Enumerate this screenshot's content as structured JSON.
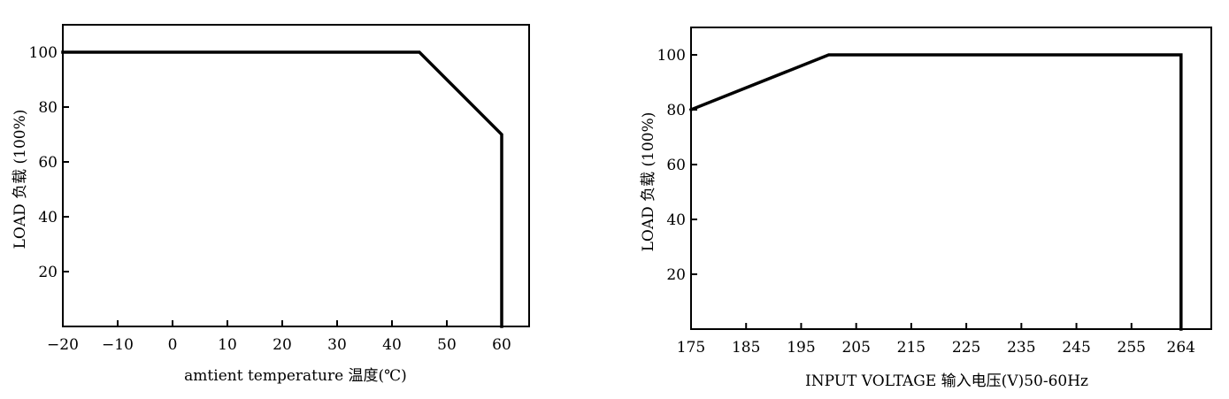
{
  "chart_data": [
    {
      "type": "line",
      "xlabel": "amtient temperature 温度(℃)",
      "ylabel": "LOAD 负载 (100%)",
      "xlim": [
        -20,
        65
      ],
      "ylim": [
        0,
        110
      ],
      "x_ticks": [
        -20,
        -10,
        0,
        10,
        20,
        30,
        40,
        50,
        60
      ],
      "x_tick_labels": [
        "−20",
        "−10",
        "0",
        "10",
        "20",
        "30",
        "40",
        "50",
        "60"
      ],
      "y_ticks": [
        20,
        40,
        60,
        80,
        100
      ],
      "y_tick_labels": [
        "20",
        "40",
        "60",
        "80",
        "100"
      ],
      "grid": false,
      "series": [
        {
          "x": [
            -20,
            45,
            60,
            60
          ],
          "y": [
            100,
            100,
            70,
            0
          ]
        }
      ]
    },
    {
      "type": "line",
      "xlabel": "INPUT VOLTAGE 输入电压(V)50-60Hz",
      "ylabel": "LOAD 负载 (100%)",
      "xlim": [
        175,
        269.5
      ],
      "ylim": [
        0,
        110
      ],
      "x_ticks": [
        175,
        185,
        195,
        205,
        215,
        225,
        235,
        245,
        255,
        264
      ],
      "x_tick_labels": [
        "175",
        "185",
        "195",
        "205",
        "215",
        "225",
        "235",
        "245",
        "255",
        "264"
      ],
      "y_ticks": [
        20,
        40,
        60,
        80,
        100
      ],
      "y_tick_labels": [
        "20",
        "40",
        "60",
        "80",
        "100"
      ],
      "grid": false,
      "series": [
        {
          "x": [
            175,
            200,
            264,
            264
          ],
          "y": [
            80,
            100,
            100,
            0
          ]
        }
      ]
    }
  ]
}
